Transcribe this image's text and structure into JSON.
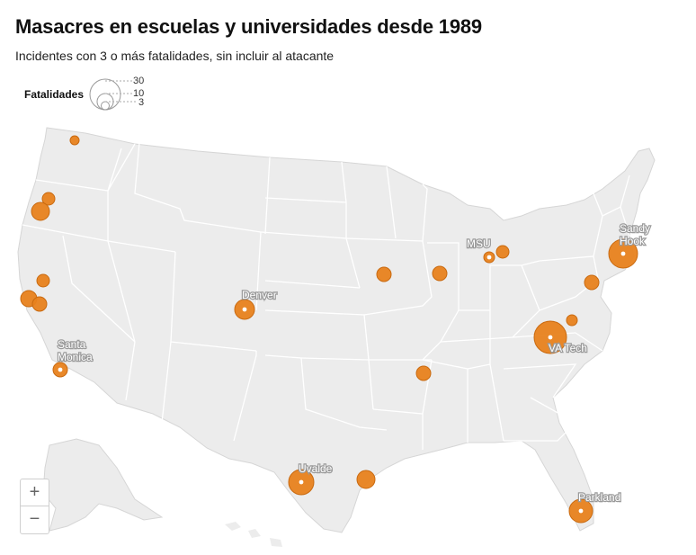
{
  "title": "Masacres en escuelas y universidades desde 1989",
  "subtitle": "Incidentes con 3 o más fatalidades, sin incluir al atacante",
  "legend": {
    "label": "Fatalidades",
    "sizes": [
      "30",
      "10",
      "3"
    ]
  },
  "colors": {
    "bubble": "#e8821e",
    "bubble_stroke": "#c96a10",
    "land": "#ececec",
    "borders": "#ffffff"
  },
  "labels": {
    "santa_monica": [
      "Santa",
      "Monica"
    ],
    "denver": "Denver",
    "uvalde": "Uvalde",
    "msu": "MSU",
    "sandy_hook": [
      "Sandy",
      "Hook"
    ],
    "va_tech": "VA Tech",
    "parkland": "Parkland"
  },
  "zoom": {
    "in": "+",
    "out": "−"
  }
}
